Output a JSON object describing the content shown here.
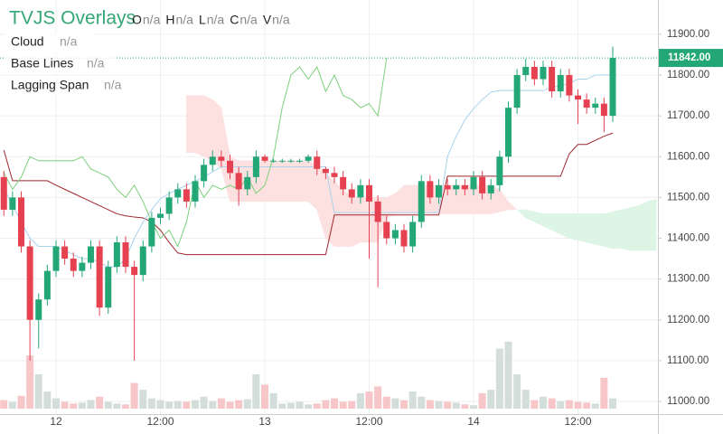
{
  "chart_data": {
    "type": "candlestick",
    "title": "TVJS Overlays",
    "ohlc_legend": [
      {
        "label": "O",
        "value": "n/a"
      },
      {
        "label": "H",
        "value": "n/a"
      },
      {
        "label": "L",
        "value": "n/a"
      },
      {
        "label": "C",
        "value": "n/a"
      },
      {
        "label": "V",
        "value": "n/a"
      }
    ],
    "categories": [
      null,
      null,
      null,
      null,
      null,
      null,
      "12",
      null,
      null,
      null,
      null,
      null,
      null,
      null,
      null,
      null,
      null,
      null,
      "12:00",
      null,
      null,
      null,
      null,
      null,
      null,
      null,
      null,
      null,
      null,
      null,
      "13",
      null,
      null,
      null,
      null,
      null,
      null,
      null,
      null,
      null,
      null,
      null,
      "12:00",
      null,
      null,
      null,
      null,
      null,
      null,
      null,
      null,
      null,
      null,
      null,
      "14",
      null,
      null,
      null,
      null,
      null,
      null,
      null,
      null,
      null,
      null,
      null,
      "12:00",
      null,
      null,
      null,
      null,
      null,
      null,
      null,
      null,
      null
    ],
    "open": [
      11550,
      11470,
      11500,
      11380,
      11200,
      11250,
      11320,
      11380,
      11350,
      11320,
      11340,
      11380,
      11230,
      11330,
      11390,
      11330,
      11310,
      11380,
      11450,
      11460,
      11500,
      11520,
      11490,
      11540,
      11580,
      11600,
      11590,
      11560,
      11520,
      11550,
      11600,
      11590,
      11590,
      11590,
      11590,
      11590,
      11600,
      11570,
      11560,
      11550,
      11520,
      11500,
      11530,
      11490,
      11440,
      11400,
      11420,
      11380,
      11440,
      11540,
      11500,
      11530,
      11520,
      11530,
      11520,
      11550,
      11510,
      11530,
      11600,
      11720,
      11800,
      11820,
      11790,
      11820,
      11760,
      11800,
      11750,
      11740,
      11720,
      11730,
      11700,
      null,
      null,
      null,
      null,
      null
    ],
    "high": [
      11565,
      11515,
      11515,
      11395,
      11265,
      11335,
      11395,
      11395,
      11365,
      11355,
      11395,
      11395,
      11345,
      11405,
      11405,
      11345,
      11395,
      11465,
      11475,
      11515,
      11535,
      11535,
      11555,
      11595,
      11615,
      11615,
      11605,
      11575,
      11565,
      11615,
      11605,
      11595,
      11595,
      11595,
      11595,
      11605,
      11615,
      11575,
      11575,
      11565,
      11535,
      11545,
      11545,
      11505,
      11455,
      11435,
      11435,
      11455,
      11555,
      11555,
      11545,
      11545,
      11545,
      11545,
      11565,
      11565,
      11545,
      11615,
      11735,
      11815,
      11840,
      11835,
      11835,
      11835,
      11815,
      11815,
      11765,
      11755,
      11745,
      11745,
      11870,
      null,
      null,
      null,
      null,
      null
    ],
    "low": [
      11455,
      11455,
      11365,
      11100,
      11130,
      11235,
      11305,
      11335,
      11305,
      11305,
      11325,
      11210,
      11215,
      11315,
      11315,
      11100,
      11295,
      11365,
      11435,
      11445,
      11485,
      11475,
      11475,
      11525,
      11565,
      11575,
      11545,
      11480,
      11505,
      11535,
      11585,
      11585,
      11585,
      11585,
      11585,
      11585,
      11555,
      11545,
      11535,
      11505,
      11485,
      11485,
      11350,
      11280,
      11385,
      11385,
      11365,
      11365,
      11425,
      11485,
      11485,
      11505,
      11505,
      11505,
      11505,
      11495,
      11495,
      11515,
      11585,
      11705,
      11785,
      11775,
      11775,
      11745,
      11745,
      11735,
      11680,
      11705,
      11705,
      11660,
      11685,
      null,
      null,
      null,
      null,
      null
    ],
    "close": [
      11470,
      11500,
      11380,
      11200,
      11250,
      11320,
      11380,
      11350,
      11320,
      11340,
      11380,
      11230,
      11330,
      11390,
      11330,
      11310,
      11380,
      11450,
      11460,
      11500,
      11520,
      11490,
      11540,
      11580,
      11600,
      11590,
      11560,
      11520,
      11550,
      11600,
      11590,
      11590,
      11590,
      11590,
      11590,
      11600,
      11570,
      11560,
      11550,
      11520,
      11500,
      11530,
      11490,
      11440,
      11400,
      11420,
      11380,
      11440,
      11540,
      11500,
      11530,
      11520,
      11530,
      11520,
      11550,
      11510,
      11530,
      11600,
      11720,
      11800,
      11820,
      11790,
      11820,
      11760,
      11800,
      11750,
      11740,
      11720,
      11730,
      11700,
      11842,
      null,
      null,
      null,
      null,
      null
    ],
    "volume": [
      10,
      8,
      15,
      62,
      40,
      20,
      12,
      8,
      6,
      7,
      10,
      14,
      8,
      6,
      5,
      30,
      22,
      12,
      10,
      8,
      9,
      8,
      10,
      14,
      9,
      12,
      8,
      10,
      11,
      40,
      28,
      18,
      6,
      7,
      8,
      5,
      6,
      10,
      12,
      8,
      9,
      18,
      20,
      26,
      14,
      12,
      10,
      20,
      14,
      10,
      9,
      8,
      7,
      5,
      4,
      18,
      22,
      70,
      78,
      40,
      22,
      10,
      14,
      12,
      9,
      10,
      8,
      7,
      6,
      36,
      12,
      null,
      null,
      null,
      null,
      null
    ],
    "up_color": "#23a776",
    "down_color": "#e54150",
    "volume_up_color": "#d3dedb",
    "volume_down_color": "#f7c6c9",
    "overlays": [
      {
        "name": "Cloud",
        "value": "n/a",
        "up_color": "#dcf5e4",
        "down_color": "#fde0e0",
        "span_a": [
          null,
          null,
          null,
          null,
          null,
          null,
          null,
          null,
          null,
          null,
          null,
          null,
          null,
          null,
          null,
          null,
          null,
          null,
          null,
          null,
          null,
          11610,
          11610,
          11600,
          11590,
          11570,
          11490,
          11490,
          11490,
          11490,
          11490,
          11490,
          11490,
          11490,
          11490,
          11490,
          11470,
          11400,
          11380,
          11380,
          11380,
          11390,
          11390,
          11390,
          11450,
          11460,
          11460,
          11460,
          11460,
          11460,
          11460,
          11460,
          11460,
          11460,
          11460,
          11460,
          11460,
          11465,
          11470,
          11470,
          11470,
          11465,
          11460,
          11460,
          11460,
          11460,
          11460,
          11460,
          11460,
          11460,
          11465,
          11470,
          11475,
          11480,
          11490,
          11495
        ],
        "span_b": [
          null,
          null,
          null,
          null,
          null,
          null,
          null,
          null,
          null,
          null,
          null,
          null,
          null,
          null,
          null,
          null,
          null,
          null,
          null,
          null,
          null,
          11750,
          11750,
          11750,
          11740,
          11720,
          11600,
          11590,
          11590,
          11590,
          11590,
          11590,
          11590,
          11590,
          11590,
          11590,
          11580,
          11560,
          11540,
          11520,
          11500,
          11500,
          11500,
          11500,
          11500,
          11510,
          11530,
          11530,
          11530,
          11530,
          11530,
          11530,
          11530,
          11530,
          11530,
          11530,
          11530,
          11520,
          11490,
          11470,
          11450,
          11440,
          11430,
          11420,
          11410,
          11400,
          11395,
          11390,
          11385,
          11380,
          11375,
          11375,
          11370,
          11370,
          11370,
          11370
        ]
      },
      {
        "name": "Base Lines",
        "value": "n/a",
        "series": [
          {
            "color": "#a0262c",
            "values": [
              11616,
              11541,
              11541,
              11541,
              11541,
              11541,
              11530,
              11520,
              11510,
              11500,
              11490,
              11480,
              11470,
              11460,
              11455,
              11452,
              11450,
              11440,
              11420,
              11390,
              11364,
              11360,
              11360,
              11360,
              11360,
              11360,
              11360,
              11360,
              11360,
              11360,
              11360,
              11360,
              11360,
              11360,
              11360,
              11360,
              11360,
              11360,
              11457,
              11457,
              11457,
              11457,
              11457,
              11457,
              11457,
              11457,
              11457,
              11457,
              11457,
              11457,
              11457,
              11552,
              11552,
              11552,
              11552,
              11552,
              11552,
              11552,
              11552,
              11552,
              11552,
              11552,
              11552,
              11552,
              11552,
              11607,
              11630,
              11630,
              11640,
              11650,
              11658,
              null,
              null,
              null,
              null,
              null
            ]
          },
          {
            "color": "#a9d3ec",
            "values": [
              11523,
              11480,
              11440,
              11400,
              11380,
              11380,
              11380,
              11370,
              11360,
              11350,
              11350,
              11340,
              11330,
              11330,
              11350,
              11400,
              11440,
              11470,
              11497,
              11510,
              11520,
              11530,
              11540,
              11550,
              11563,
              11575,
              11575,
              11575,
              11575,
              11575,
              11575,
              11575,
              11575,
              11575,
              11575,
              11575,
              11575,
              11575,
              11463,
              11463,
              11463,
              11463,
              11463,
              11463,
              11463,
              11463,
              11463,
              11463,
              11463,
              11463,
              11463,
              11600,
              11650,
              11690,
              11718,
              11740,
              11758,
              11762,
              11762,
              11762,
              11762,
              11762,
              11762,
              11770,
              11774,
              11780,
              11790,
              11790,
              11800,
              11800,
              11800,
              null,
              null,
              null,
              null,
              null
            ]
          }
        ]
      },
      {
        "name": "Lagging Span",
        "value": "n/a",
        "color": "#7ccf7c",
        "values": [
          11560,
          11520,
          11550,
          11600,
          11590,
          11590,
          11590,
          11590,
          11590,
          11600,
          11570,
          11560,
          11550,
          11520,
          11500,
          11530,
          11490,
          11440,
          11400,
          11420,
          11380,
          11440,
          11540,
          11500,
          11530,
          11520,
          11530,
          11520,
          11550,
          11510,
          11530,
          11600,
          11720,
          11800,
          11820,
          11790,
          11820,
          11760,
          11800,
          11750,
          11740,
          11720,
          11730,
          11700,
          11842,
          null,
          null,
          null,
          null,
          null,
          null,
          null,
          null,
          null,
          null,
          null,
          null,
          null,
          null,
          null,
          null,
          null,
          null,
          null,
          null,
          null,
          null,
          null,
          null,
          null,
          null,
          null,
          null,
          null,
          null,
          null
        ]
      }
    ],
    "last_price": {
      "value": 11842,
      "label": "11842.00"
    },
    "ylim": [
      10969,
      11984
    ],
    "yticks": [
      {
        "value": 11000,
        "label": "11000.00"
      },
      {
        "value": 11100,
        "label": "11100.00"
      },
      {
        "value": 11200,
        "label": "11200.00"
      },
      {
        "value": 11300,
        "label": "11300.00"
      },
      {
        "value": 11400,
        "label": "11400.00"
      },
      {
        "value": 11500,
        "label": "11500.00"
      },
      {
        "value": 11600,
        "label": "11600.00"
      },
      {
        "value": 11700,
        "label": "11700.00"
      },
      {
        "value": 11800,
        "label": "11800.00"
      },
      {
        "value": 11900,
        "label": "11900.00"
      }
    ],
    "grid": true
  }
}
